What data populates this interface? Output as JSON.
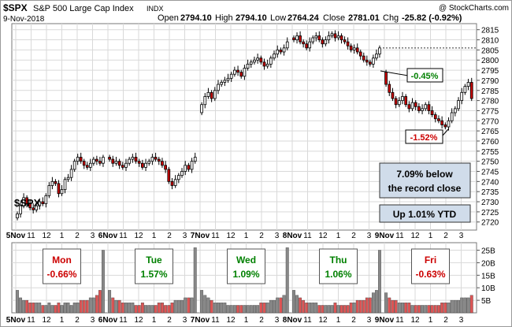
{
  "header": {
    "symbol": "$SPX",
    "name": "S&P 500 Large Cap Index",
    "exchange": "INDX",
    "watermark": "@ StockCharts.com",
    "date": "9-Nov-2018",
    "open_label": "Open",
    "open_value": "2794.10",
    "high_label": "High",
    "high_value": "2794.10",
    "low_label": "Low",
    "low_value": "2764.24",
    "close_label": "Close",
    "close_value": "2781.01",
    "chg_label": "Chg",
    "chg_value": "-25.82 (-0.92%)"
  },
  "price_panel": {
    "symbol_label": "$SPX",
    "annotations": {
      "drop_from_prev_close": "-0.45%",
      "drop_from_high": "-1.52%",
      "record_box_line1": "7.09% below",
      "record_box_line2": "the record close",
      "ytd_box": "Up 1.01% YTD"
    },
    "prev_close_level": 2806
  },
  "volume_panel": {
    "day_boxes": [
      {
        "day": "Mon",
        "pct": "-0.66%",
        "color": "#cc0000"
      },
      {
        "day": "Tue",
        "pct": "1.57%",
        "color": "#008000"
      },
      {
        "day": "Wed",
        "pct": "1.09%",
        "color": "#008000"
      },
      {
        "day": "Thu",
        "pct": "1.06%",
        "color": "#008000"
      },
      {
        "day": "Fri",
        "pct": "-0.63%",
        "color": "#cc0000"
      }
    ]
  },
  "x_axis": {
    "labels": [
      "5Nov",
      "11",
      "12",
      "1",
      "2",
      "3",
      "6Nov",
      "11",
      "12",
      "1",
      "2",
      "3",
      "7Nov",
      "11",
      "12",
      "1",
      "2",
      "3",
      "8Nov",
      "11",
      "12",
      "1",
      "2",
      "3",
      "9Nov",
      "11",
      "12",
      "1",
      "2",
      "3"
    ],
    "bold_labels": [
      "5Nov",
      "6Nov",
      "7Nov",
      "8Nov",
      "9Nov"
    ]
  },
  "colors": {
    "up_candle": "#ffffff",
    "down_candle": "#cc0000",
    "volume_up": "#888888",
    "volume_down": "#dd5555",
    "grid": "#d9d9d9",
    "box_fill": "#d0dcea",
    "green_text": "#008000",
    "red_text": "#cc0000"
  },
  "chart_data": [
    {
      "type": "candlestick",
      "title": "$SPX S&P 500 Large Cap Index INDX",
      "interval": "15-minute bars, 5-Nov-2018 to 9-Nov-2018",
      "ylim": [
        2716,
        2818
      ],
      "y_ticks": [
        2720,
        2725,
        2730,
        2735,
        2740,
        2745,
        2750,
        2755,
        2760,
        2765,
        2770,
        2775,
        2780,
        2785,
        2790,
        2795,
        2800,
        2805,
        2810,
        2815
      ],
      "grid": true,
      "days": [
        "Mon",
        "Tue",
        "Wed",
        "Thu",
        "Fri"
      ],
      "closes": [
        [
          2724,
          2728,
          2732,
          2729,
          2727,
          2726,
          2728,
          2730,
          2729,
          2733,
          2738,
          2740,
          2739,
          2734,
          2736,
          2741,
          2742,
          2746,
          2750,
          2752,
          2750,
          2748,
          2747,
          2749,
          2751,
          2750,
          2749,
          2752
        ],
        [
          2751,
          2749,
          2750,
          2748,
          2747,
          2749,
          2751,
          2752,
          2750,
          2749,
          2747,
          2749,
          2750,
          2752,
          2751,
          2750,
          2748,
          2746,
          2740,
          2738,
          2741,
          2743,
          2745,
          2748,
          2746,
          2750,
          2752
        ],
        [
          2778,
          2782,
          2784,
          2781,
          2785,
          2788,
          2789,
          2790,
          2791,
          2793,
          2795,
          2794,
          2792,
          2796,
          2798,
          2799,
          2800,
          2801,
          2799,
          2797,
          2798,
          2801,
          2803,
          2805,
          2804,
          2806,
          2809
        ],
        [
          2810,
          2812,
          2809,
          2808,
          2806,
          2809,
          2811,
          2812,
          2810,
          2808,
          2810,
          2812,
          2813,
          2811,
          2812,
          2810,
          2809,
          2807,
          2805,
          2806,
          2804,
          2802,
          2800,
          2799,
          2798,
          2801,
          2803,
          2806
        ],
        [
          2788,
          2784,
          2781,
          2778,
          2780,
          2782,
          2778,
          2776,
          2779,
          2777,
          2775,
          2776,
          2778,
          2775,
          2773,
          2771,
          2770,
          2768,
          2767,
          2770,
          2774,
          2776,
          2780,
          2784,
          2787,
          2789,
          2781
        ]
      ]
    },
    {
      "type": "bar",
      "title": "Volume",
      "y_ticks_labels": [
        "5B",
        "10B",
        "15B",
        "20B",
        "25B"
      ],
      "y_ticks_values": [
        5,
        10,
        15,
        20,
        25
      ],
      "ylim": [
        0,
        28
      ],
      "volumes": [
        [
          9,
          6,
          5,
          5,
          4,
          4,
          4,
          4,
          3,
          3,
          4,
          3,
          3,
          4,
          3,
          4,
          4,
          3,
          4,
          4,
          5,
          5,
          5,
          6,
          6,
          7,
          9,
          25
        ],
        [
          9,
          6,
          5,
          5,
          4,
          4,
          4,
          4,
          3,
          3,
          4,
          3,
          3,
          3,
          3,
          4,
          4,
          3,
          3,
          4,
          5,
          5,
          5,
          6,
          6,
          6,
          26
        ],
        [
          9,
          7,
          6,
          5,
          4,
          4,
          4,
          4,
          3,
          3,
          3,
          3,
          3,
          3,
          3,
          3,
          3,
          3,
          4,
          4,
          4,
          5,
          5,
          6,
          6,
          7,
          26
        ],
        [
          9,
          7,
          6,
          5,
          4,
          4,
          4,
          4,
          3,
          3,
          3,
          3,
          3,
          4,
          3,
          3,
          3,
          3,
          4,
          4,
          5,
          5,
          5,
          6,
          6,
          8,
          9,
          25
        ],
        [
          8,
          6,
          5,
          5,
          4,
          4,
          4,
          4,
          3,
          3,
          3,
          3,
          3,
          3,
          3,
          3,
          3,
          4,
          4,
          4,
          5,
          5,
          5,
          6,
          6,
          6,
          7
        ]
      ]
    }
  ]
}
